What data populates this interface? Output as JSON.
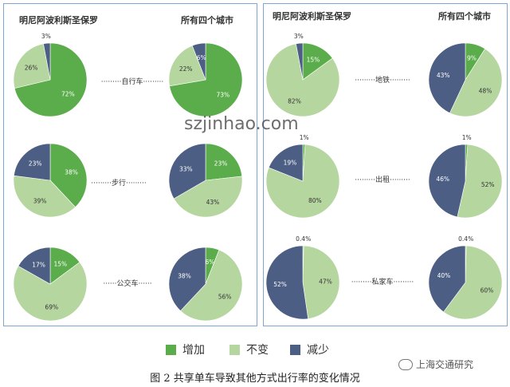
{
  "colors": {
    "increase": "#5aad4a",
    "unchanged": "#b6d6a0",
    "decrease": "#4c5e84"
  },
  "headers": {
    "left_minneapolis": "明尼阿波利斯圣保罗",
    "left_all": "所有四个城市",
    "right_minneapolis": "明尼阿波利斯圣保罗",
    "right_all": "所有四个城市"
  },
  "chart_data": {
    "type": "pie",
    "series_names": [
      "增加",
      "不变",
      "减少"
    ],
    "modes": [
      {
        "label": "·········自行车·········",
        "minneapolis": [
          72,
          26,
          3
        ],
        "all": [
          73,
          22,
          6
        ]
      },
      {
        "label": "·········步行·········",
        "minneapolis": [
          38,
          39,
          23
        ],
        "all": [
          23,
          43,
          33
        ]
      },
      {
        "label": "······公交车······",
        "minneapolis": [
          15,
          69,
          17
        ],
        "all": [
          6,
          56,
          38
        ]
      },
      {
        "label": "·········地铁·········",
        "minneapolis": [
          15,
          82,
          3
        ],
        "all": [
          9,
          48,
          43
        ]
      },
      {
        "label": "·········出租·········",
        "minneapolis": [
          1,
          80,
          19
        ],
        "all": [
          1,
          52,
          46
        ]
      },
      {
        "label": "·········私家车·········",
        "minneapolis": [
          0.4,
          47,
          52
        ],
        "all": [
          0.4,
          60,
          40
        ]
      }
    ]
  },
  "legend": [
    {
      "key": "increase",
      "label": "增加"
    },
    {
      "key": "unchanged",
      "label": "不变"
    },
    {
      "key": "decrease",
      "label": "减少"
    }
  ],
  "caption": "图 2  共享单车导致其他方式出行率的变化情况",
  "watermark": "szjinhao.com",
  "brand": "上海交通研究"
}
